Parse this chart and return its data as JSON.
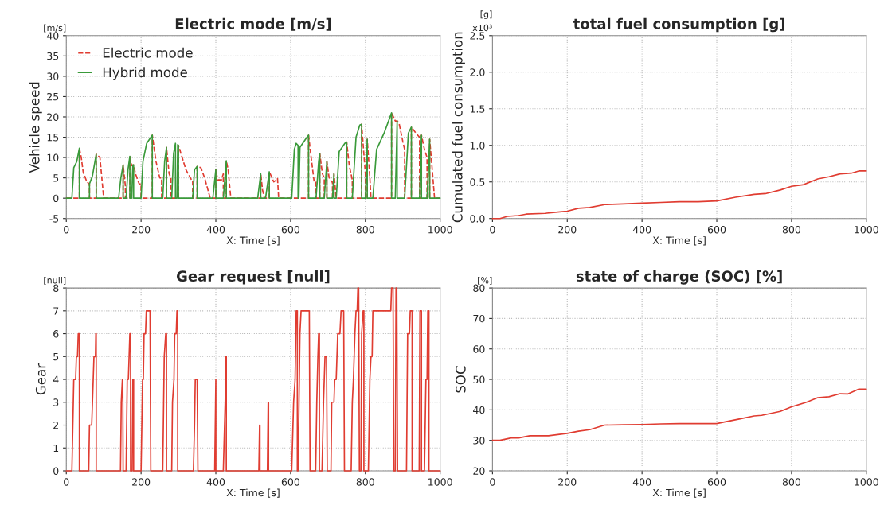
{
  "chart_data": [
    {
      "type": "line",
      "title": "Electric mode [m/s]",
      "xlabel": "X: Time [s]",
      "ylabel": "Vehicle speed",
      "annotations": [
        "[m/s]"
      ],
      "xlim": [
        0,
        1000
      ],
      "xticks": [
        0,
        200,
        400,
        600,
        800,
        1000
      ],
      "ylim": [
        -5,
        40
      ],
      "yticks": [
        -5,
        0,
        5,
        10,
        15,
        20,
        25,
        30,
        35,
        40
      ],
      "grid": true,
      "legend": "top left",
      "series": [
        {
          "name": "Electric mode",
          "color": "#e03c31",
          "line_style": "dashed",
          "x": [
            0,
            35,
            35,
            40,
            45,
            55,
            62,
            62,
            80,
            80,
            90,
            100,
            152,
            152,
            158,
            158,
            170,
            170,
            175,
            180,
            185,
            195,
            200,
            200,
            230,
            230,
            240,
            250,
            255,
            255,
            268,
            268,
            275,
            280,
            280,
            300,
            300,
            310,
            320,
            335,
            338,
            338,
            350,
            350,
            360,
            370,
            385,
            400,
            400,
            405,
            415,
            420,
            420,
            428,
            428,
            433,
            440,
            520,
            520,
            525,
            530,
            543,
            543,
            555,
            565,
            568,
            648,
            648,
            655,
            663,
            668,
            668,
            678,
            678,
            685,
            690,
            690,
            697,
            697,
            703,
            710,
            712,
            712,
            716,
            716,
            722,
            750,
            750,
            757,
            765,
            765,
            790,
            790,
            795,
            800,
            800,
            805,
            805,
            812,
            815,
            870,
            870,
            880,
            885,
            890,
            900,
            905,
            905,
            923,
            923,
            935,
            945,
            945,
            950,
            950,
            958,
            965,
            965,
            972,
            972,
            978,
            985,
            1000
          ],
          "values": [
            0,
            0,
            12.3,
            10,
            6.5,
            4,
            3.5,
            0,
            0,
            10.8,
            10,
            0,
            0,
            8.2,
            3,
            0,
            0,
            10.3,
            8,
            8.2,
            6,
            3.5,
            3.5,
            0,
            0,
            15.5,
            9,
            5,
            5,
            0,
            0,
            12.5,
            6,
            5,
            0,
            0,
            13,
            10,
            7,
            4.5,
            4.5,
            0,
            0,
            7.8,
            7.5,
            5,
            0,
            0,
            7,
            4.5,
            4.5,
            6,
            0,
            0,
            9.2,
            7,
            0,
            0,
            6,
            2,
            0,
            0,
            6.5,
            4,
            4.8,
            0,
            0,
            15.5,
            10,
            4,
            4,
            0,
            0,
            11,
            6,
            5,
            0,
            0,
            9,
            5,
            4,
            4,
            0,
            0,
            6,
            0,
            0,
            13.8,
            8,
            4.5,
            0,
            0,
            18.2,
            12,
            6,
            0,
            0,
            14.5,
            5,
            0,
            0,
            21,
            19,
            19,
            18.5,
            14,
            12,
            0,
            0,
            17.5,
            16,
            15,
            0,
            0,
            15.5,
            12,
            10,
            0,
            0,
            14.5,
            8,
            0,
            0
          ]
        },
        {
          "name": "Hybrid mode",
          "color": "#3a9a3a",
          "line_style": "solid",
          "x": [
            0,
            15,
            20,
            28,
            35,
            35,
            62,
            62,
            70,
            80,
            80,
            140,
            146,
            152,
            152,
            160,
            165,
            170,
            170,
            175,
            178,
            180,
            180,
            200,
            205,
            215,
            230,
            230,
            258,
            263,
            268,
            268,
            282,
            287,
            292,
            292,
            296,
            298,
            300,
            300,
            338,
            343,
            350,
            350,
            392,
            400,
            400,
            420,
            428,
            428,
            512,
            520,
            520,
            533,
            543,
            543,
            603,
            610,
            615,
            620,
            620,
            622,
            625,
            640,
            648,
            648,
            668,
            675,
            678,
            678,
            690,
            697,
            697,
            712,
            716,
            716,
            722,
            730,
            745,
            750,
            750,
            765,
            775,
            785,
            790,
            790,
            800,
            805,
            805,
            820,
            830,
            850,
            870,
            870,
            880,
            885,
            885,
            905,
            915,
            923,
            923,
            945,
            950,
            950,
            965,
            972,
            972,
            1000
          ],
          "values": [
            0,
            0,
            7.5,
            9,
            12.3,
            0,
            0,
            3.5,
            5.5,
            10.8,
            0,
            0,
            5,
            8.2,
            0,
            0,
            7,
            10.3,
            0,
            0,
            8.2,
            8.2,
            0,
            0,
            9,
            13.5,
            15.5,
            0,
            0,
            9,
            12.5,
            0,
            0,
            11,
            13.5,
            0,
            0,
            13.2,
            13,
            0,
            0,
            7,
            7.8,
            0,
            0,
            7,
            0,
            0,
            9.2,
            0,
            0,
            6,
            0,
            0,
            6.5,
            0,
            0,
            12,
            13.5,
            13,
            0,
            0,
            12.5,
            14.5,
            15.5,
            0,
            0,
            9,
            11,
            0,
            0,
            9,
            0,
            0,
            6,
            0,
            0,
            11.5,
            13.5,
            13.8,
            0,
            0,
            15,
            18,
            18.2,
            0,
            0,
            14.5,
            0,
            0,
            12,
            16,
            21,
            0,
            0,
            19,
            0,
            0,
            16,
            17.5,
            0,
            0,
            15.5,
            0,
            0,
            14.5,
            0,
            0
          ]
        }
      ]
    },
    {
      "type": "line",
      "title": "total fuel consumption [g]",
      "xlabel": "X: Time [s]",
      "ylabel": "Cumulated fuel consumption",
      "annotations": [
        "[g]",
        "x10³"
      ],
      "xlim": [
        0,
        1000
      ],
      "xticks": [
        0,
        200,
        400,
        600,
        800,
        1000
      ],
      "ylim": [
        0.0,
        2.5
      ],
      "yticks": [
        {
          "value": 0,
          "label": "0.0"
        },
        0.5,
        {
          "value": 1,
          "label": "1.0"
        },
        1.5,
        {
          "value": 2,
          "label": "2.0"
        },
        2.5
      ],
      "grid": true,
      "series": [
        {
          "color": "#e03c31",
          "x": [
            0,
            20,
            40,
            70,
            90,
            140,
            180,
            200,
            230,
            260,
            300,
            350,
            400,
            450,
            500,
            550,
            600,
            650,
            700,
            730,
            770,
            800,
            830,
            870,
            900,
            930,
            960,
            980,
            1000
          ],
          "values": [
            0,
            0,
            0.03,
            0.04,
            0.06,
            0.07,
            0.09,
            0.1,
            0.14,
            0.15,
            0.19,
            0.2,
            0.21,
            0.22,
            0.23,
            0.23,
            0.24,
            0.29,
            0.33,
            0.34,
            0.39,
            0.44,
            0.46,
            0.54,
            0.57,
            0.61,
            0.62,
            0.65,
            0.65
          ]
        }
      ]
    },
    {
      "type": "line",
      "title": "Gear request [null]",
      "xlabel": "X: Time [s]",
      "ylabel": "Gear",
      "annotations": [
        "[null]"
      ],
      "xlim": [
        0,
        1000
      ],
      "xticks": [
        0,
        200,
        400,
        600,
        800,
        1000
      ],
      "ylim": [
        0,
        8
      ],
      "yticks": [
        0,
        1,
        2,
        3,
        4,
        5,
        6,
        7,
        8
      ],
      "grid": true,
      "series": [
        {
          "color": "#e03c31",
          "x": [
            0,
            15,
            20,
            25,
            27,
            30,
            32,
            35,
            35,
            60,
            62,
            68,
            72,
            74,
            78,
            79,
            80,
            80,
            145,
            147,
            150,
            151,
            152,
            160,
            163,
            166,
            168,
            170,
            172,
            172,
            176,
            178,
            180,
            180,
            200,
            204,
            206,
            208,
            212,
            214,
            224,
            226,
            258,
            262,
            266,
            268,
            268,
            282,
            284,
            288,
            290,
            294,
            296,
            298,
            298,
            340,
            343,
            345,
            350,
            352,
            397,
            400,
            400,
            420,
            425,
            427,
            428,
            428,
            515,
            517,
            518,
            518,
            538,
            540,
            541,
            541,
            603,
            608,
            612,
            615,
            618,
            618,
            620,
            625,
            628,
            650,
            652,
            667,
            670,
            673,
            675,
            677,
            677,
            684,
            688,
            692,
            696,
            698,
            708,
            710,
            714,
            716,
            718,
            722,
            724,
            726,
            732,
            735,
            742,
            744,
            762,
            765,
            768,
            772,
            775,
            778,
            780,
            782,
            784,
            788,
            790,
            794,
            796,
            796,
            808,
            812,
            815,
            818,
            820,
            868,
            870,
            874,
            876,
            880,
            882,
            884,
            886,
            910,
            913,
            918,
            920,
            925,
            925,
            944,
            946,
            950,
            950,
            958,
            962,
            965,
            967,
            970,
            970,
            1000
          ],
          "values": [
            0,
            0,
            4,
            4,
            5,
            5,
            6,
            6,
            0,
            0,
            2,
            2,
            4,
            5,
            5,
            6,
            6,
            0,
            0,
            3,
            4,
            4,
            0,
            0,
            4,
            4,
            5,
            6,
            6,
            0,
            0,
            4,
            4,
            0,
            0,
            4,
            4,
            6,
            6,
            7,
            7,
            0,
            0,
            5,
            6,
            6,
            0,
            0,
            3,
            4,
            6,
            6,
            7,
            7,
            0,
            0,
            2,
            4,
            4,
            0,
            0,
            4,
            0,
            0,
            3,
            5,
            5,
            0,
            0,
            2,
            2,
            0,
            0,
            3,
            3,
            0,
            0,
            3,
            4,
            7,
            7,
            0,
            0,
            6,
            7,
            7,
            0,
            0,
            3,
            5,
            6,
            6,
            0,
            0,
            3,
            5,
            5,
            0,
            0,
            3,
            3,
            3,
            4,
            4,
            5,
            6,
            6,
            7,
            7,
            0,
            0,
            3,
            4,
            6,
            7,
            7,
            8,
            8,
            0,
            0,
            6,
            7,
            7,
            0,
            0,
            4,
            5,
            5,
            7,
            7,
            8,
            8,
            0,
            0,
            8,
            8,
            0,
            0,
            6,
            6,
            7,
            7,
            0,
            0,
            7,
            7,
            0,
            0,
            4,
            4,
            7,
            7,
            0,
            0
          ]
        }
      ]
    },
    {
      "type": "line",
      "title": "state of charge (SOC) [%]",
      "xlabel": "X: Time [s]",
      "ylabel": "SOC",
      "annotations": [
        "[%]"
      ],
      "xlim": [
        0,
        1000
      ],
      "xticks": [
        0,
        200,
        400,
        600,
        800,
        1000
      ],
      "ylim": [
        20,
        80
      ],
      "yticks": [
        20,
        30,
        40,
        50,
        60,
        70,
        80
      ],
      "grid": true,
      "series": [
        {
          "color": "#e03c31",
          "x": [
            0,
            20,
            50,
            70,
            100,
            150,
            200,
            230,
            260,
            300,
            350,
            400,
            450,
            500,
            550,
            600,
            620,
            660,
            700,
            720,
            770,
            800,
            840,
            870,
            900,
            930,
            950,
            980,
            1000
          ],
          "values": [
            30,
            30,
            30.8,
            30.8,
            31.5,
            31.5,
            32.3,
            33,
            33.5,
            35,
            35.1,
            35.2,
            35.4,
            35.5,
            35.5,
            35.5,
            36,
            37,
            38,
            38.2,
            39.5,
            41,
            42.5,
            44,
            44.3,
            45.3,
            45.2,
            46.8,
            46.8
          ]
        }
      ]
    }
  ]
}
